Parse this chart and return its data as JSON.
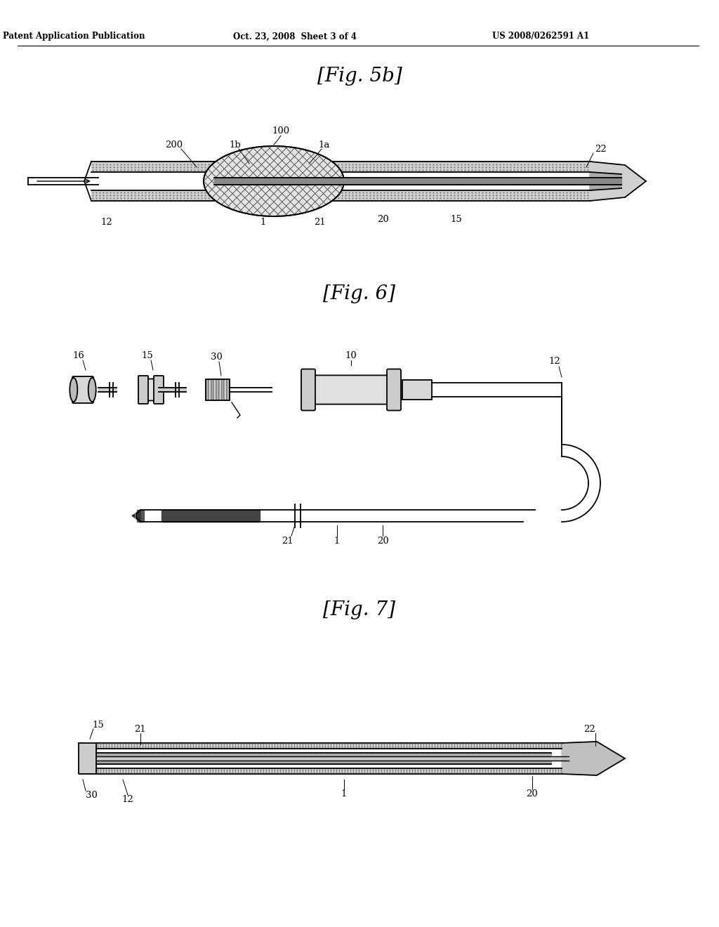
{
  "bg_color": "#ffffff",
  "fig_width": 10.24,
  "fig_height": 13.2,
  "header_left": "Patent Application Publication",
  "header_mid": "Oct. 23, 2008  Sheet 3 of 4",
  "header_right": "US 2008/0262591 A1",
  "fig5b_title": "[Fig. 5b]",
  "fig6_title": "[Fig. 6]",
  "fig7_title": "[Fig. 7]",
  "lc": "#000000"
}
